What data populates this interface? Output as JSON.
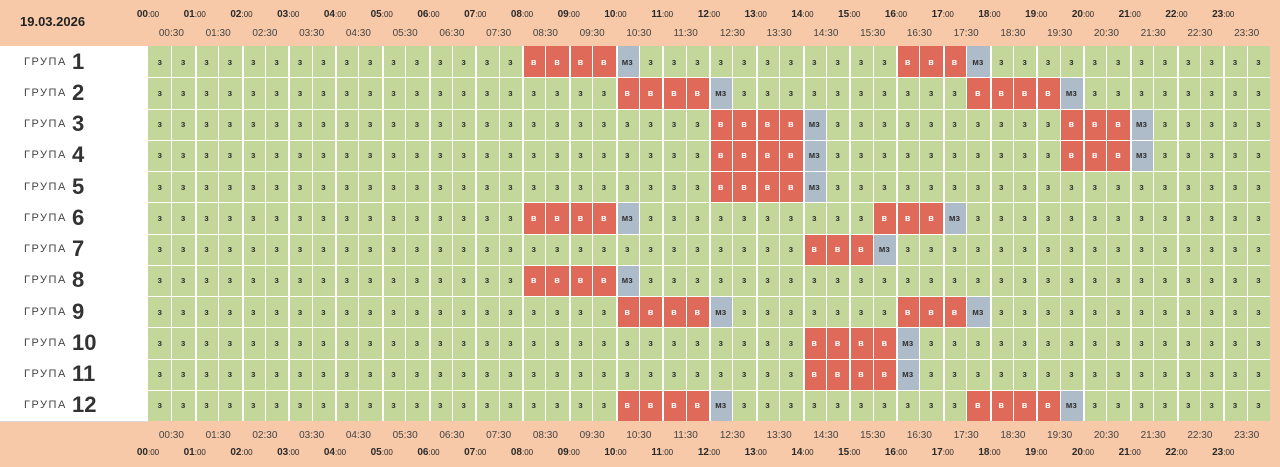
{
  "date": "19.03.2026",
  "group_word": "ГРУПА",
  "hours": [
    "00",
    "01",
    "02",
    "03",
    "04",
    "05",
    "06",
    "07",
    "08",
    "09",
    "10",
    "11",
    "12",
    "13",
    "14",
    "15",
    "16",
    "17",
    "18",
    "19",
    "20",
    "21",
    "22",
    "23"
  ],
  "minutes": "00",
  "halves": [
    "00:30",
    "01:30",
    "02:30",
    "03:30",
    "04:30",
    "05:30",
    "06:30",
    "07:30",
    "08:30",
    "09:30",
    "10:30",
    "11:30",
    "12:30",
    "13:30",
    "14:30",
    "15:30",
    "16:30",
    "17:30",
    "18:30",
    "19:30",
    "20:30",
    "21:30",
    "22:30",
    "23:30"
  ],
  "codes": {
    "z": "з",
    "v": "в",
    "mz": "мз"
  },
  "groups": [
    {
      "num": "1",
      "outages": [
        [
          16,
          20
        ],
        [
          32,
          35
        ]
      ],
      "mz": [
        20,
        35
      ]
    },
    {
      "num": "2",
      "outages": [
        [
          20,
          24
        ],
        [
          35,
          39
        ]
      ],
      "mz": [
        24,
        39
      ]
    },
    {
      "num": "3",
      "outages": [
        [
          24,
          28
        ],
        [
          39,
          42
        ]
      ],
      "mz": [
        28,
        42
      ]
    },
    {
      "num": "4",
      "outages": [
        [
          24,
          28
        ],
        [
          39,
          42
        ]
      ],
      "mz": [
        28,
        42
      ]
    },
    {
      "num": "5",
      "outages": [
        [
          24,
          28
        ]
      ],
      "mz": [
        28
      ]
    },
    {
      "num": "6",
      "outages": [
        [
          16,
          20
        ],
        [
          31,
          34
        ]
      ],
      "mz": [
        20,
        34
      ]
    },
    {
      "num": "7",
      "outages": [
        [
          28,
          31
        ]
      ],
      "mz": [
        31
      ]
    },
    {
      "num": "8",
      "outages": [
        [
          16,
          20
        ]
      ],
      "mz": [
        20
      ]
    },
    {
      "num": "9",
      "outages": [
        [
          20,
          24
        ],
        [
          32,
          35
        ]
      ],
      "mz": [
        24,
        35
      ]
    },
    {
      "num": "10",
      "outages": [
        [
          28,
          32
        ]
      ],
      "mz": [
        32
      ]
    },
    {
      "num": "11",
      "outages": [
        [
          28,
          32
        ]
      ],
      "mz": [
        32
      ]
    },
    {
      "num": "12",
      "outages": [
        [
          20,
          24
        ],
        [
          35,
          39
        ]
      ],
      "mz": [
        24,
        39
      ]
    }
  ]
}
